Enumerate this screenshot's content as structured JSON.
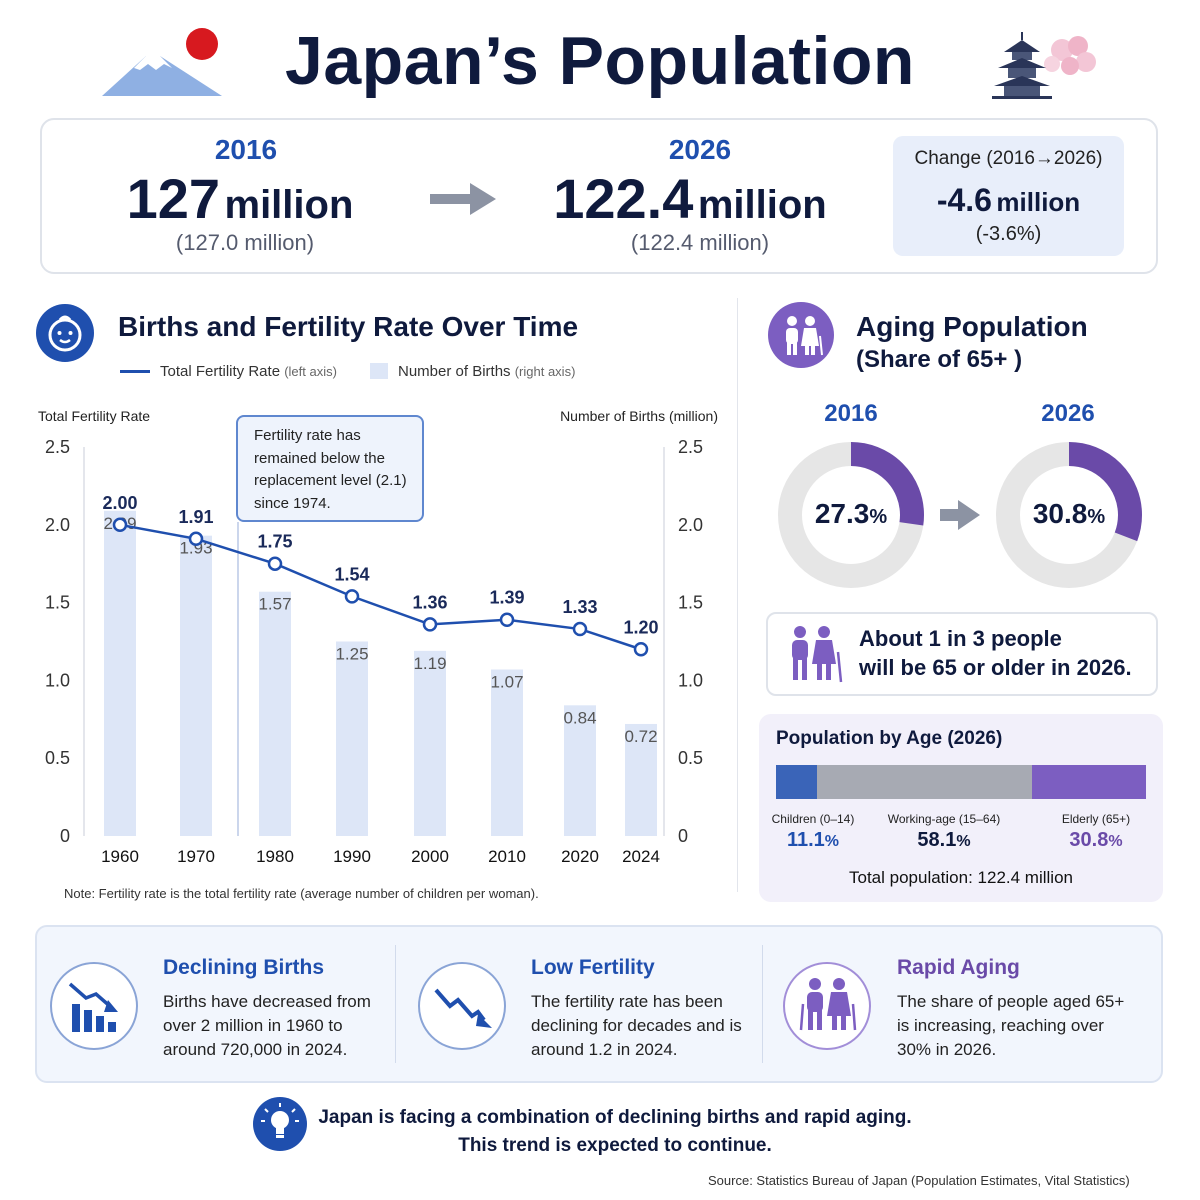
{
  "header": {
    "title": "Japan’s Population"
  },
  "summary": {
    "left": {
      "year": "2016",
      "value": "127",
      "unit": "million",
      "sub": "(127.0 million)"
    },
    "right": {
      "year": "2026",
      "value": "122.4",
      "unit": "million",
      "sub": "(122.4 million)"
    },
    "change": {
      "label": "Change (2016→2026)",
      "value": "-4.6",
      "unit": "million",
      "percent": "(-3.6%)"
    }
  },
  "births_section": {
    "title": "Births and Fertility Rate Over Time",
    "legend_line": "Total Fertility Rate",
    "legend_line_note": "(left axis)",
    "legend_bar": "Number of Births",
    "legend_bar_note": "(right axis)",
    "left_axis_title": "Total Fertility Rate",
    "right_axis_title": "Number of Births (million)",
    "annotation": "Fertility rate has remained below the replacement level (2.1) since 1974.",
    "note": "Note: Fertility rate is the total fertility rate (average number of children per woman)."
  },
  "chart_data": {
    "type": "bar",
    "categories": [
      "1960",
      "1970",
      "1980",
      "1990",
      "2000",
      "2010",
      "2020",
      "2024"
    ],
    "series": [
      {
        "name": "Total Fertility Rate",
        "type": "line",
        "axis": "left",
        "values": [
          2.0,
          1.91,
          1.75,
          1.54,
          1.36,
          1.39,
          1.33,
          1.2
        ],
        "labels": [
          "2.00",
          "1.91",
          "1.75",
          "1.54",
          "1.36",
          "1.39",
          "1.33",
          "1.20"
        ]
      },
      {
        "name": "Number of Births",
        "type": "bar",
        "axis": "right",
        "values": [
          2.09,
          1.93,
          1.57,
          1.25,
          1.19,
          1.07,
          0.84,
          0.72
        ],
        "labels": [
          "2.09",
          "1.93",
          "1.57",
          "1.25",
          "1.19",
          "1.07",
          "0.84",
          "0.72"
        ]
      }
    ],
    "ylim": [
      0,
      2.5
    ],
    "y_ticks": [
      "0",
      "0.5",
      "1.0",
      "1.5",
      "2.0",
      "2.5"
    ],
    "xlabel": "",
    "ylabel": "Total Fertility Rate",
    "y2label": "Number of Births (million)",
    "grid": false,
    "legend": "top-left",
    "colors": {
      "line": "#1f4fae",
      "bar": "#dde6f7"
    }
  },
  "aging": {
    "title_line1": "Aging Population",
    "title_line2": "(Share of 65+ )",
    "donut_left": {
      "year": "2016",
      "value": "27.3",
      "unit": "%",
      "fraction": 0.273
    },
    "donut_right": {
      "year": "2026",
      "value": "30.8",
      "unit": "%",
      "fraction": 0.308
    },
    "callout_line1": "About 1 in 3 people",
    "callout_line2": "will be 65 or older in 2026.",
    "by_age": {
      "title": "Population by Age (2026)",
      "children_label": "Children (0–14)",
      "children_value": "11.1",
      "children_share": 0.111,
      "working_label": "Working-age (15–64)",
      "working_value": "58.1",
      "working_share": 0.581,
      "elderly_label": "Elderly (65+)",
      "elderly_value": "30.8",
      "elderly_share": 0.308,
      "pct": "%",
      "total": "Total population: 122.4 million"
    },
    "colors": {
      "accent": "#6a4aa8",
      "track": "#e6e6e6",
      "children": "#3a64b8",
      "working": "#a7aab3",
      "elderly": "#7c5ec1"
    }
  },
  "cards": [
    {
      "title": "Declining Births",
      "text": "Births have decreased from over 2 million in 1960 to around 720,000 in 2024.",
      "icon": "bar-chart-down-icon"
    },
    {
      "title": "Low Fertility",
      "text": "The fertility rate has been declining for decades and is around 1.2 in 2024.",
      "icon": "trend-down-icon"
    },
    {
      "title": "Rapid Aging",
      "text": "The share of people aged 65+ is increasing, reaching over 30% in 2026.",
      "icon": "elderly-couple-icon"
    }
  ],
  "conclusion": {
    "line1": "Japan is facing a combination of declining births and rapid aging.",
    "line2": "This trend is expected to continue."
  },
  "source": "Source: Statistics Bureau of Japan (Population Estimates, Vital Statistics)"
}
